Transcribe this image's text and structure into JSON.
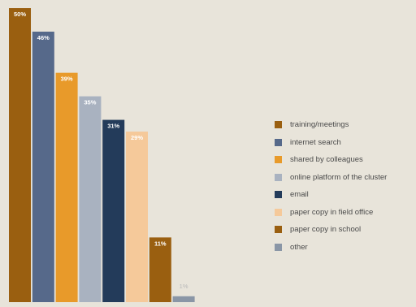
{
  "chart_data": {
    "type": "bar",
    "categories": [
      "training/meetings",
      "internet search",
      "shared by colleagues",
      "online platform of the cluster",
      "email",
      "paper copy in field office",
      "paper copy in school",
      "other"
    ],
    "values": [
      50,
      46,
      39,
      35,
      31,
      29,
      11,
      1
    ],
    "value_labels": [
      "50%",
      "46%",
      "39%",
      "35%",
      "31%",
      "29%",
      "11%",
      "1%"
    ],
    "colors": [
      "#9a5f10",
      "#56698a",
      "#e89a2a",
      "#a9b2c0",
      "#233b5a",
      "#f5c99a",
      "#9a5f10",
      "#8a96a6"
    ],
    "ylim": [
      0,
      50
    ],
    "grid": false,
    "legend_position": "right"
  }
}
